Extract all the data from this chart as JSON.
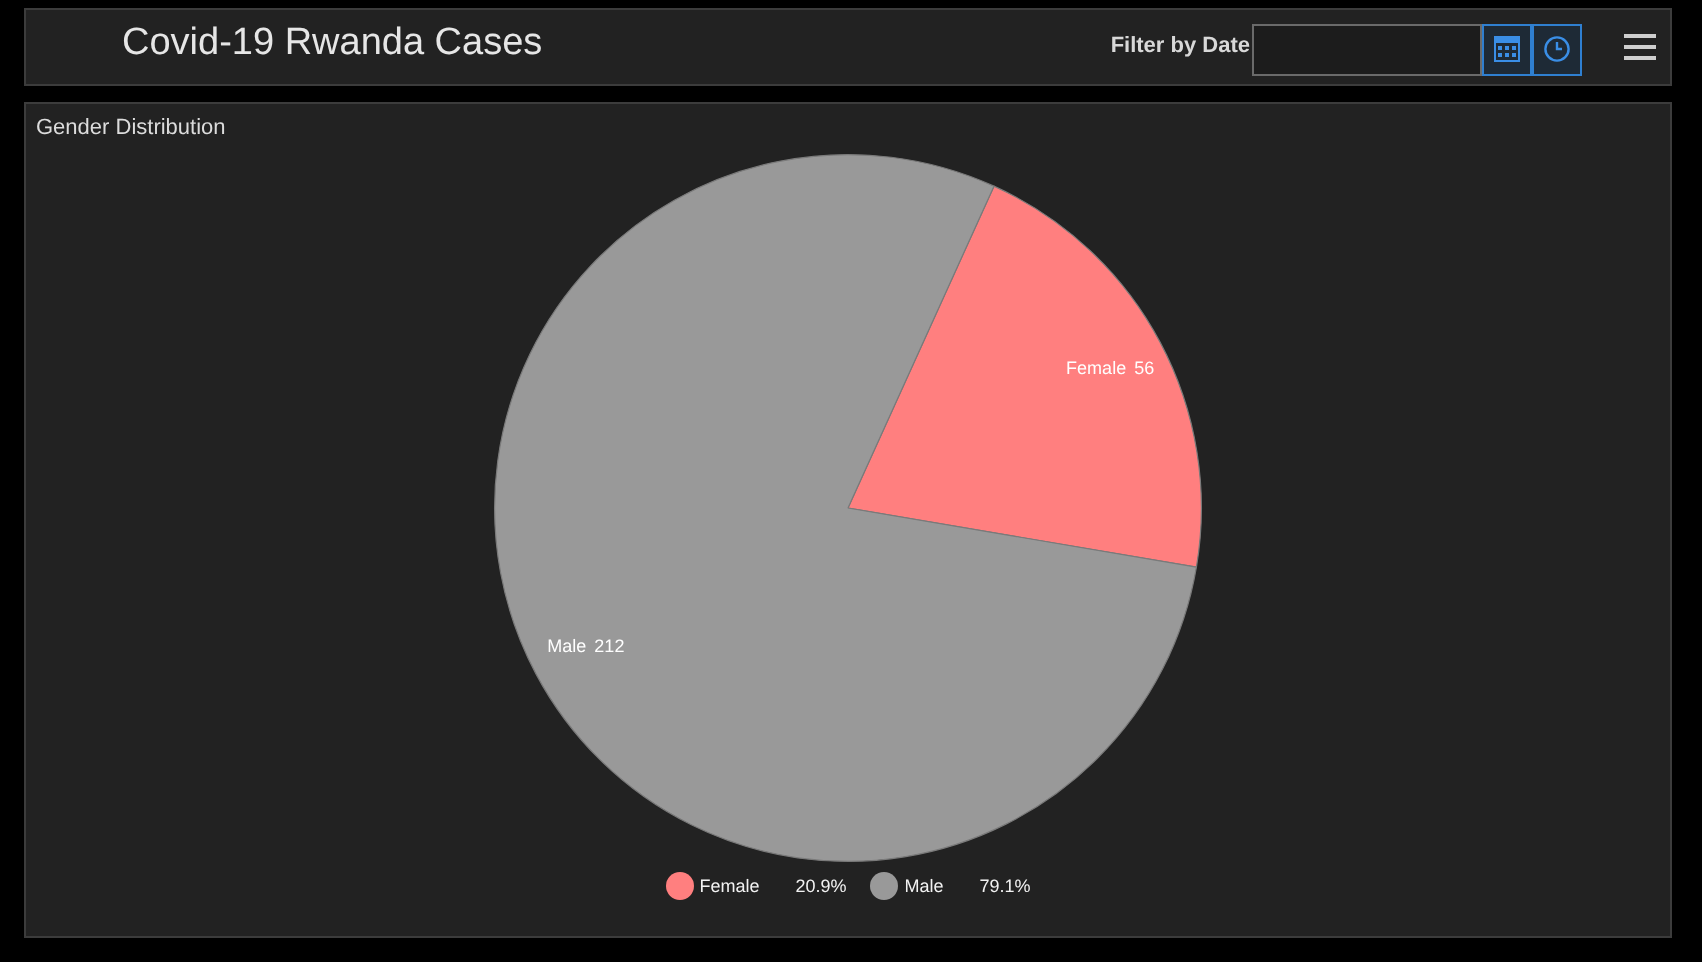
{
  "chart_data": {
    "type": "pie",
    "title": "Covid-19 Rwanda Cases",
    "subtitle": "Gender Distribution",
    "categories": [
      "Female",
      "Male"
    ],
    "values": [
      56,
      212
    ],
    "colors": [
      "#ff7f7f",
      "#999999"
    ],
    "data_labels": true,
    "legend": "bottom",
    "annotations": [
      "Filter by Date",
      "20.9%",
      "79.1%"
    ]
  }
}
